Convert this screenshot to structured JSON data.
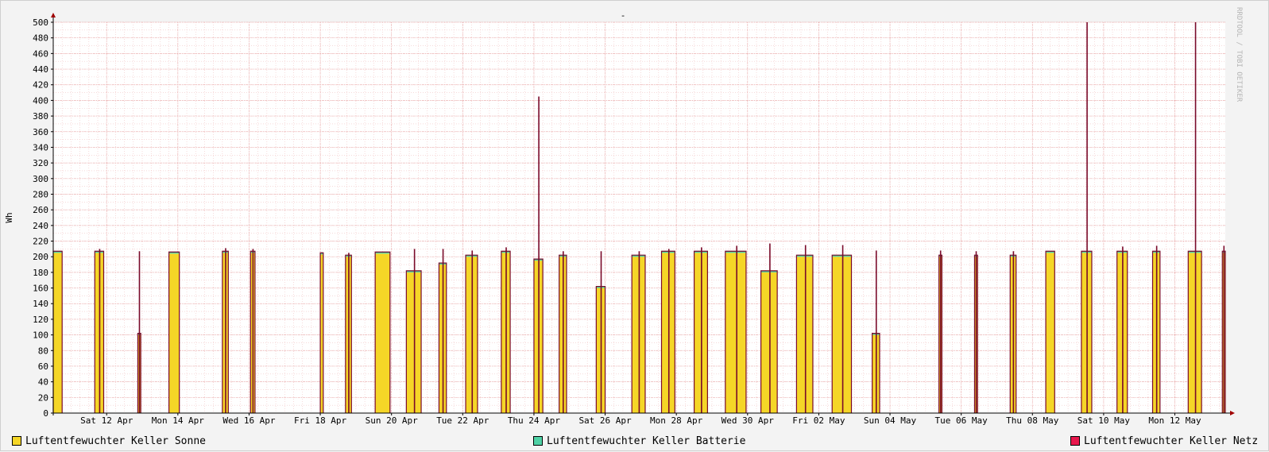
{
  "chart_data": {
    "type": "area",
    "title": "-",
    "watermark": "RRDTOOL / TOBI OETIKER",
    "ylabel": "Wh",
    "ylim": [
      0,
      500
    ],
    "y_ticks": [
      0,
      20,
      40,
      60,
      80,
      100,
      120,
      140,
      160,
      180,
      200,
      220,
      240,
      260,
      280,
      300,
      320,
      340,
      360,
      380,
      400,
      420,
      440,
      460,
      480,
      500
    ],
    "x_range": [
      "2024-04-11T00:00",
      "2024-05-13T22:00"
    ],
    "x_ticks": [
      {
        "date": "2024-04-12T12:00",
        "label": "Sat 12 Apr"
      },
      {
        "date": "2024-04-14T12:00",
        "label": "Mon 14 Apr"
      },
      {
        "date": "2024-04-16T12:00",
        "label": "Wed 16 Apr"
      },
      {
        "date": "2024-04-18T12:00",
        "label": "Fri 18 Apr"
      },
      {
        "date": "2024-04-20T12:00",
        "label": "Sun 20 Apr"
      },
      {
        "date": "2024-04-22T12:00",
        "label": "Tue 22 Apr"
      },
      {
        "date": "2024-04-24T12:00",
        "label": "Thu 24 Apr"
      },
      {
        "date": "2024-04-26T12:00",
        "label": "Sat 26 Apr"
      },
      {
        "date": "2024-04-28T12:00",
        "label": "Mon 28 Apr"
      },
      {
        "date": "2024-04-30T12:00",
        "label": "Wed 30 Apr"
      },
      {
        "date": "2024-05-02T12:00",
        "label": "Fri 02 May"
      },
      {
        "date": "2024-05-04T12:00",
        "label": "Sun 04 May"
      },
      {
        "date": "2024-05-06T12:00",
        "label": "Tue 06 May"
      },
      {
        "date": "2024-05-08T12:00",
        "label": "Thu 08 May"
      },
      {
        "date": "2024-05-10T12:00",
        "label": "Sat 10 May"
      },
      {
        "date": "2024-05-12T12:00",
        "label": "Mon 12 May"
      }
    ],
    "grid": true,
    "legend_position": "bottom",
    "series": [
      {
        "name": "Luftentfewuchter Keller Sonne",
        "color": "#f5d627",
        "stack": true
      },
      {
        "name": "Luftentfewuchter Keller Batterie",
        "color": "#4fd1a5",
        "stack": true
      },
      {
        "name": "Luftentfewuchter Keller Netz",
        "color": "#e8174d",
        "line_color": "#7a0a2a",
        "stack": true
      }
    ],
    "runs": [
      {
        "start": "2024-04-11T00:00",
        "end": "2024-04-11T06:00",
        "level": 205,
        "peak": 205
      },
      {
        "start": "2024-04-12T04:00",
        "end": "2024-04-12T10:00",
        "level": 205,
        "peak": 210
      },
      {
        "start": "2024-04-13T09:00",
        "end": "2024-04-13T11:00",
        "level": 100,
        "peak": 207
      },
      {
        "start": "2024-04-14T06:00",
        "end": "2024-04-14T13:00",
        "level": 204,
        "peak": 207
      },
      {
        "start": "2024-04-15T18:00",
        "end": "2024-04-15T22:00",
        "level": 205,
        "peak": 211
      },
      {
        "start": "2024-04-16T13:00",
        "end": "2024-04-16T16:00",
        "level": 205,
        "peak": 210
      },
      {
        "start": "2024-04-18T12:00",
        "end": "2024-04-18T14:00",
        "level": 203,
        "peak": 203
      },
      {
        "start": "2024-04-19T05:00",
        "end": "2024-04-19T09:00",
        "level": 200,
        "peak": 205
      },
      {
        "start": "2024-04-20T01:00",
        "end": "2024-04-20T11:00",
        "level": 204,
        "peak": 206
      },
      {
        "start": "2024-04-20T22:00",
        "end": "2024-04-21T08:00",
        "level": 180,
        "peak": 210
      },
      {
        "start": "2024-04-21T20:00",
        "end": "2024-04-22T01:00",
        "level": 190,
        "peak": 210
      },
      {
        "start": "2024-04-22T14:00",
        "end": "2024-04-22T22:00",
        "level": 200,
        "peak": 208
      },
      {
        "start": "2024-04-23T14:00",
        "end": "2024-04-23T20:00",
        "level": 205,
        "peak": 212
      },
      {
        "start": "2024-04-24T12:00",
        "end": "2024-04-24T18:00",
        "level": 195,
        "peak": 405
      },
      {
        "start": "2024-04-25T05:00",
        "end": "2024-04-25T10:00",
        "level": 200,
        "peak": 207
      },
      {
        "start": "2024-04-26T06:00",
        "end": "2024-04-26T12:00",
        "level": 160,
        "peak": 207
      },
      {
        "start": "2024-04-27T06:00",
        "end": "2024-04-27T15:00",
        "level": 200,
        "peak": 207
      },
      {
        "start": "2024-04-28T02:00",
        "end": "2024-04-28T11:00",
        "level": 205,
        "peak": 210
      },
      {
        "start": "2024-04-29T00:00",
        "end": "2024-04-29T09:00",
        "level": 205,
        "peak": 212
      },
      {
        "start": "2024-04-29T21:00",
        "end": "2024-04-30T11:00",
        "level": 205,
        "peak": 214
      },
      {
        "start": "2024-04-30T21:00",
        "end": "2024-05-01T08:00",
        "level": 180,
        "peak": 217
      },
      {
        "start": "2024-05-01T21:00",
        "end": "2024-05-02T08:00",
        "level": 200,
        "peak": 215
      },
      {
        "start": "2024-05-02T21:00",
        "end": "2024-05-03T10:00",
        "level": 200,
        "peak": 215
      },
      {
        "start": "2024-05-04T00:00",
        "end": "2024-05-04T05:00",
        "level": 100,
        "peak": 208
      },
      {
        "start": "2024-05-05T21:00",
        "end": "2024-05-05T23:00",
        "level": 200,
        "peak": 208
      },
      {
        "start": "2024-05-06T21:00",
        "end": "2024-05-06T23:00",
        "level": 200,
        "peak": 207
      },
      {
        "start": "2024-05-07T21:00",
        "end": "2024-05-08T01:00",
        "level": 200,
        "peak": 207
      },
      {
        "start": "2024-05-08T21:00",
        "end": "2024-05-09T03:00",
        "level": 205,
        "peak": 208
      },
      {
        "start": "2024-05-09T21:00",
        "end": "2024-05-10T04:00",
        "level": 205,
        "peak": 500
      },
      {
        "start": "2024-05-10T21:00",
        "end": "2024-05-11T04:00",
        "level": 205,
        "peak": 213
      },
      {
        "start": "2024-05-11T21:00",
        "end": "2024-05-12T02:00",
        "level": 205,
        "peak": 214
      },
      {
        "start": "2024-05-12T21:00",
        "end": "2024-05-13T06:00",
        "level": 205,
        "peak": 500
      },
      {
        "start": "2024-05-13T20:00",
        "end": "2024-05-13T22:00",
        "level": 205,
        "peak": 214
      }
    ]
  }
}
